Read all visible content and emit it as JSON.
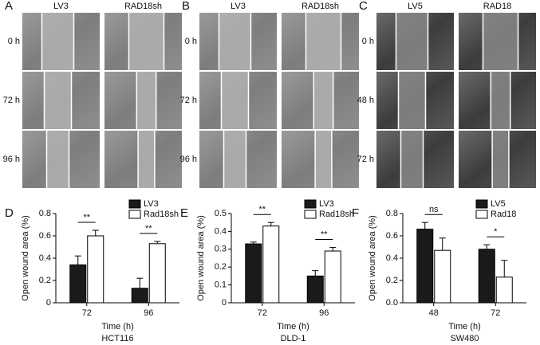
{
  "image_panels": [
    {
      "panel": "A",
      "columns": [
        "LV3",
        "RAD18sh"
      ],
      "rows": [
        "0 h",
        "72 h",
        "96 h"
      ]
    },
    {
      "panel": "B",
      "columns": [
        "LV3",
        "RAD18sh"
      ],
      "rows": [
        "0 h",
        "72 h",
        "96 h"
      ]
    },
    {
      "panel": "C",
      "columns": [
        "LV5",
        "RAD18"
      ],
      "rows": [
        "0 h",
        "48 h",
        "72 h"
      ]
    }
  ],
  "chart_data": [
    {
      "type": "bar",
      "panel": "D",
      "ylabel": "Open wound area (%)",
      "xlabel": "Time (h)",
      "subtitle": "HCT116",
      "categories": [
        "72",
        "96"
      ],
      "series": [
        {
          "name": "LV3",
          "color": "#1a1a1a",
          "values": [
            0.34,
            0.13
          ],
          "errors": [
            0.08,
            0.09
          ]
        },
        {
          "name": "Rad18sh",
          "color": "#ffffff",
          "values": [
            0.6,
            0.53
          ],
          "errors": [
            0.05,
            0.02
          ]
        }
      ],
      "annotations": [
        "**",
        "**"
      ],
      "ylim": [
        0,
        0.8
      ],
      "yticks": [
        0,
        0.2,
        0.4,
        0.6,
        0.8
      ]
    },
    {
      "type": "bar",
      "panel": "E",
      "ylabel": "Open wound area (%)",
      "xlabel": "Time (h)",
      "subtitle": "DLD-1",
      "categories": [
        "72",
        "96"
      ],
      "series": [
        {
          "name": "LV3",
          "color": "#1a1a1a",
          "values": [
            0.33,
            0.15
          ],
          "errors": [
            0.01,
            0.03
          ]
        },
        {
          "name": "Rad18sh",
          "color": "#ffffff",
          "values": [
            0.43,
            0.29
          ],
          "errors": [
            0.02,
            0.02
          ]
        }
      ],
      "annotations": [
        "**",
        "**"
      ],
      "ylim": [
        0,
        0.5
      ],
      "yticks": [
        0,
        0.1,
        0.2,
        0.3,
        0.4,
        0.5
      ]
    },
    {
      "type": "bar",
      "panel": "F",
      "ylabel": "Open wound area (%)",
      "xlabel": "Time (h)",
      "subtitle": "SW480",
      "categories": [
        "48",
        "72"
      ],
      "series": [
        {
          "name": "LV5",
          "color": "#1a1a1a",
          "values": [
            0.66,
            0.48
          ],
          "errors": [
            0.06,
            0.04
          ]
        },
        {
          "name": "Rad18",
          "color": "#ffffff",
          "values": [
            0.47,
            0.23
          ],
          "errors": [
            0.11,
            0.15
          ]
        }
      ],
      "annotations": [
        "ns",
        "*"
      ],
      "ylim": [
        0,
        0.8
      ],
      "yticks": [
        {
          "value": 0,
          "label": "0.0"
        },
        0.2,
        0.4,
        0.6,
        0.8
      ]
    }
  ]
}
